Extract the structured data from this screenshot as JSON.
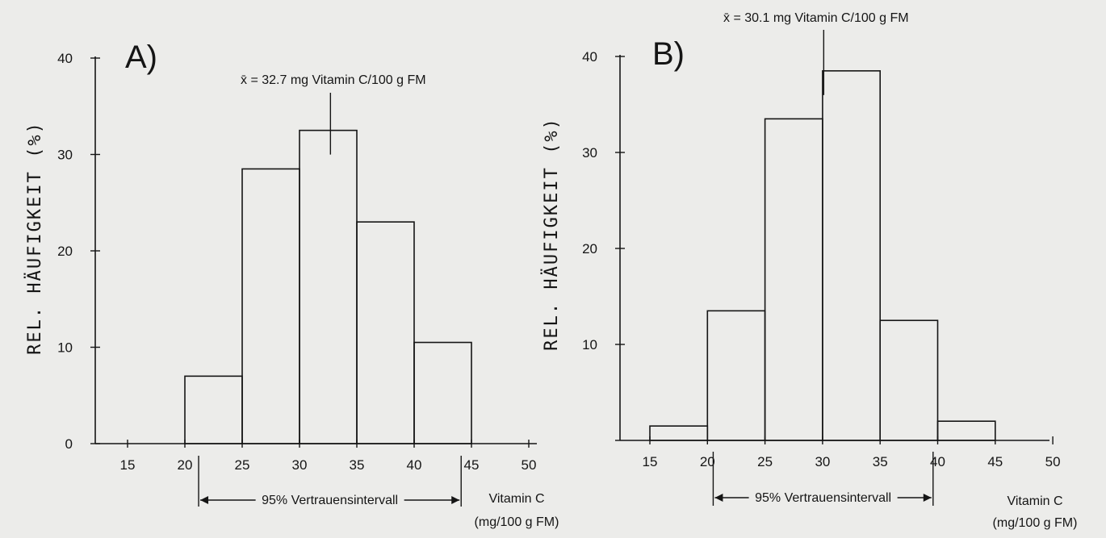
{
  "chart_data": [
    {
      "type": "bar",
      "panel_label": "A)",
      "ylabel": "REL. HÄUFIGKEIT (%)",
      "xlabel_line1": "Vitamin C",
      "xlabel_line2": "(mg/100 g FM)",
      "x_ticks": [
        15,
        20,
        25,
        30,
        35,
        40,
        45,
        50
      ],
      "y_ticks": [
        0,
        10,
        20,
        30,
        40
      ],
      "xlim": [
        12.5,
        50
      ],
      "ylim": [
        0,
        40
      ],
      "bin_edges": [
        20,
        25,
        30,
        35,
        40,
        45
      ],
      "values": [
        7,
        28.5,
        32.5,
        23,
        10.5
      ],
      "mean_label": "x̄ = 32.7 mg Vitamin C/100 g FM",
      "mean": 32.7,
      "ci_label": "95% Vertrauensintervall",
      "ci": [
        21.2,
        44.1
      ],
      "grid": false
    },
    {
      "type": "bar",
      "panel_label": "B)",
      "ylabel": "REL. HÄUFIGKEIT (%)",
      "xlabel_line1": "Vitamin C",
      "xlabel_line2": "(mg/100 g FM)",
      "x_ticks": [
        15,
        20,
        25,
        30,
        35,
        40,
        45,
        50
      ],
      "y_ticks": [
        10,
        20,
        30,
        40
      ],
      "xlim": [
        12.5,
        50
      ],
      "ylim": [
        0,
        40
      ],
      "bin_edges": [
        15,
        20,
        25,
        30,
        35,
        40,
        45
      ],
      "values": [
        1.5,
        13.5,
        33.5,
        38.5,
        12.5,
        2
      ],
      "mean_label": "x̄ = 30.1 mg Vitamin C/100 g FM",
      "mean": 30.1,
      "ci_label": "95% Vertrauensintervall",
      "ci": [
        20.5,
        39.6
      ],
      "grid": false
    }
  ]
}
